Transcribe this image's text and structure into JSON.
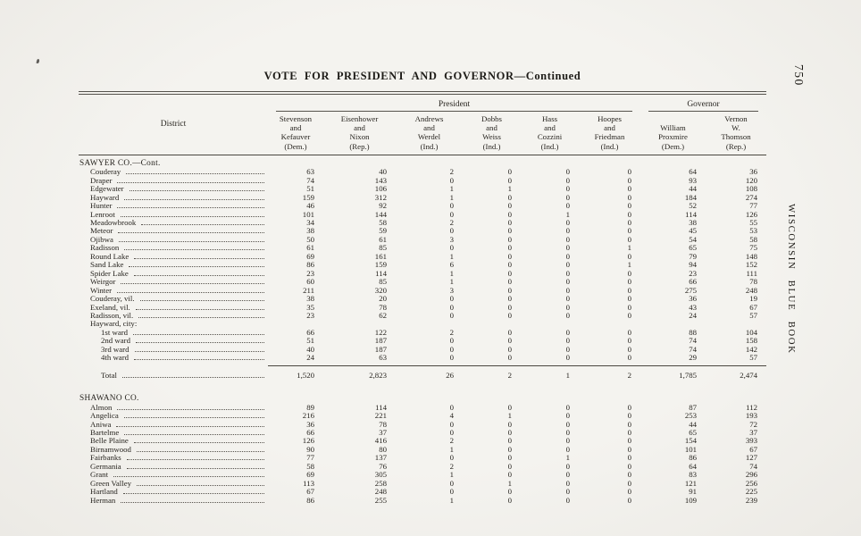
{
  "page": {
    "title": "VOTE FOR PRESIDENT AND GOVERNOR—Continued",
    "page_number": "750",
    "side_margin_text": "WISCONSIN BLUE BOOK"
  },
  "table": {
    "district_header": "District",
    "column_groups": [
      {
        "label": "President",
        "span": 6
      },
      {
        "label": "Governor",
        "span": 2
      }
    ],
    "columns": [
      {
        "lines": [
          "Stevenson",
          "and",
          "Kefauver",
          "(Dem.)"
        ]
      },
      {
        "lines": [
          "Eisenhower",
          "and",
          "Nixon",
          "(Rep.)"
        ]
      },
      {
        "lines": [
          "Andrews",
          "and",
          "Werdel",
          "(Ind.)"
        ]
      },
      {
        "lines": [
          "Dobbs",
          "and",
          "Weiss",
          "(Ind.)"
        ]
      },
      {
        "lines": [
          "Hass",
          "and",
          "Cozzini",
          "(Ind.)"
        ]
      },
      {
        "lines": [
          "Hoopes",
          "and",
          "Friedman",
          "(Ind.)"
        ]
      },
      {
        "lines": [
          "William",
          "Proxmire",
          "(Dem.)"
        ]
      },
      {
        "lines": [
          "Vernon",
          "W.",
          "Thomson",
          "(Rep.)"
        ]
      }
    ],
    "sections": [
      {
        "heading": "SAWYER CO.—Cont.",
        "rows": [
          {
            "district": "Couderay",
            "indent": 1,
            "values": [
              "63",
              "40",
              "2",
              "0",
              "0",
              "0",
              "64",
              "36"
            ]
          },
          {
            "district": "Draper",
            "indent": 1,
            "values": [
              "74",
              "143",
              "0",
              "0",
              "0",
              "0",
              "93",
              "120"
            ]
          },
          {
            "district": "Edgewater",
            "indent": 1,
            "values": [
              "51",
              "106",
              "1",
              "1",
              "0",
              "0",
              "44",
              "108"
            ]
          },
          {
            "district": "Hayward",
            "indent": 1,
            "values": [
              "159",
              "312",
              "1",
              "0",
              "0",
              "0",
              "184",
              "274"
            ]
          },
          {
            "district": "Hunter",
            "indent": 1,
            "values": [
              "46",
              "92",
              "0",
              "0",
              "0",
              "0",
              "52",
              "77"
            ]
          },
          {
            "district": "Lenroot",
            "indent": 1,
            "values": [
              "101",
              "144",
              "0",
              "0",
              "1",
              "0",
              "114",
              "126"
            ]
          },
          {
            "district": "Meadowbrook",
            "indent": 1,
            "values": [
              "34",
              "58",
              "2",
              "0",
              "0",
              "0",
              "38",
              "55"
            ]
          },
          {
            "district": "Meteor",
            "indent": 1,
            "values": [
              "38",
              "59",
              "0",
              "0",
              "0",
              "0",
              "45",
              "53"
            ]
          },
          {
            "district": "Ojibwa",
            "indent": 1,
            "values": [
              "50",
              "61",
              "3",
              "0",
              "0",
              "0",
              "54",
              "58"
            ]
          },
          {
            "district": "Radisson",
            "indent": 1,
            "values": [
              "61",
              "85",
              "0",
              "0",
              "0",
              "1",
              "65",
              "75"
            ]
          },
          {
            "district": "Round Lake",
            "indent": 1,
            "values": [
              "69",
              "161",
              "1",
              "0",
              "0",
              "0",
              "79",
              "148"
            ]
          },
          {
            "district": "Sand Lake",
            "indent": 1,
            "values": [
              "86",
              "159",
              "6",
              "0",
              "0",
              "1",
              "94",
              "152"
            ]
          },
          {
            "district": "Spider Lake",
            "indent": 1,
            "values": [
              "23",
              "114",
              "1",
              "0",
              "0",
              "0",
              "23",
              "111"
            ]
          },
          {
            "district": "Weirgor",
            "indent": 1,
            "values": [
              "60",
              "85",
              "1",
              "0",
              "0",
              "0",
              "66",
              "78"
            ]
          },
          {
            "district": "Winter",
            "indent": 1,
            "values": [
              "211",
              "320",
              "3",
              "0",
              "0",
              "0",
              "275",
              "248"
            ]
          },
          {
            "district": "Couderay, vil.",
            "indent": 1,
            "values": [
              "38",
              "20",
              "0",
              "0",
              "0",
              "0",
              "36",
              "19"
            ]
          },
          {
            "district": "Exeland, vil.",
            "indent": 1,
            "values": [
              "35",
              "78",
              "0",
              "0",
              "0",
              "0",
              "43",
              "67"
            ]
          },
          {
            "district": "Radisson, vil.",
            "indent": 1,
            "values": [
              "23",
              "62",
              "0",
              "0",
              "0",
              "0",
              "24",
              "57"
            ]
          },
          {
            "district": "Hayward, city:",
            "indent": 1,
            "values": null
          },
          {
            "district": "1st ward",
            "indent": 2,
            "values": [
              "66",
              "122",
              "2",
              "0",
              "0",
              "0",
              "88",
              "104"
            ]
          },
          {
            "district": "2nd ward",
            "indent": 2,
            "values": [
              "51",
              "187",
              "0",
              "0",
              "0",
              "0",
              "74",
              "158"
            ]
          },
          {
            "district": "3rd ward",
            "indent": 2,
            "values": [
              "40",
              "187",
              "0",
              "0",
              "0",
              "0",
              "74",
              "142"
            ]
          },
          {
            "district": "4th ward",
            "indent": 2,
            "values": [
              "24",
              "63",
              "0",
              "0",
              "0",
              "0",
              "29",
              "57"
            ]
          }
        ],
        "total": {
          "label": "Total",
          "values": [
            "1,520",
            "2,823",
            "26",
            "2",
            "1",
            "2",
            "1,785",
            "2,474"
          ]
        }
      },
      {
        "heading": "SHAWANO CO.",
        "rows": [
          {
            "district": "Almon",
            "indent": 1,
            "values": [
              "89",
              "114",
              "0",
              "0",
              "0",
              "0",
              "87",
              "112"
            ]
          },
          {
            "district": "Angelica",
            "indent": 1,
            "values": [
              "216",
              "221",
              "4",
              "1",
              "0",
              "0",
              "253",
              "193"
            ]
          },
          {
            "district": "Aniwa",
            "indent": 1,
            "values": [
              "36",
              "78",
              "0",
              "0",
              "0",
              "0",
              "44",
              "72"
            ]
          },
          {
            "district": "Bartelme",
            "indent": 1,
            "values": [
              "66",
              "37",
              "0",
              "0",
              "0",
              "0",
              "65",
              "37"
            ]
          },
          {
            "district": "Belle Plaine",
            "indent": 1,
            "values": [
              "126",
              "416",
              "2",
              "0",
              "0",
              "0",
              "154",
              "393"
            ]
          },
          {
            "district": "Birnamwood",
            "indent": 1,
            "values": [
              "90",
              "80",
              "1",
              "0",
              "0",
              "0",
              "101",
              "67"
            ]
          },
          {
            "district": "Fairbanks",
            "indent": 1,
            "values": [
              "77",
              "137",
              "0",
              "0",
              "1",
              "0",
              "86",
              "127"
            ]
          },
          {
            "district": "Germania",
            "indent": 1,
            "values": [
              "58",
              "76",
              "2",
              "0",
              "0",
              "0",
              "64",
              "74"
            ]
          },
          {
            "district": "Grant",
            "indent": 1,
            "values": [
              "69",
              "305",
              "1",
              "0",
              "0",
              "0",
              "83",
              "296"
            ]
          },
          {
            "district": "Green Valley",
            "indent": 1,
            "values": [
              "113",
              "258",
              "0",
              "1",
              "0",
              "0",
              "121",
              "256"
            ]
          },
          {
            "district": "Hartland",
            "indent": 1,
            "values": [
              "67",
              "248",
              "0",
              "0",
              "0",
              "0",
              "91",
              "225"
            ]
          },
          {
            "district": "Herman",
            "indent": 1,
            "values": [
              "86",
              "255",
              "1",
              "0",
              "0",
              "0",
              "109",
              "239"
            ]
          }
        ],
        "total": null
      }
    ]
  }
}
